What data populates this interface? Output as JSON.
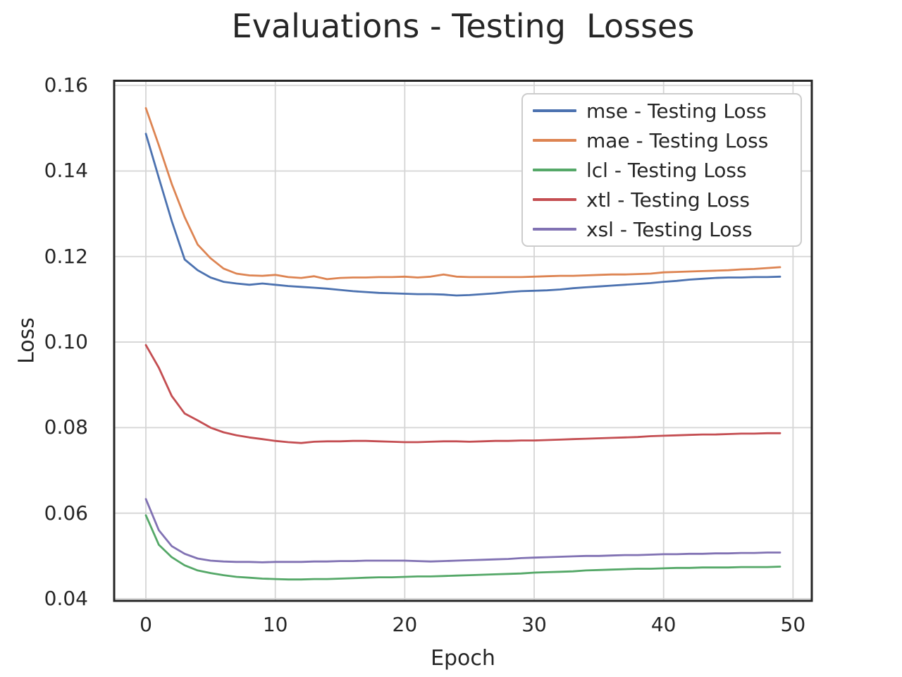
{
  "chart_data": {
    "type": "line",
    "title": "Evaluations - Testing  Losses",
    "xlabel": "Epoch",
    "ylabel": "Loss",
    "xlim": [
      -2.45,
      51.45
    ],
    "ylim": [
      0.0395,
      0.1611
    ],
    "xticks": [
      0,
      10,
      20,
      30,
      40,
      50
    ],
    "yticks": [
      0.04,
      0.06,
      0.08,
      0.1,
      0.12,
      0.14,
      0.16
    ],
    "grid": true,
    "legend_position": "upper right",
    "x": [
      0,
      1,
      2,
      3,
      4,
      5,
      6,
      7,
      8,
      9,
      10,
      11,
      12,
      13,
      14,
      15,
      16,
      17,
      18,
      19,
      20,
      21,
      22,
      23,
      24,
      25,
      26,
      27,
      28,
      29,
      30,
      31,
      32,
      33,
      34,
      35,
      36,
      37,
      38,
      39,
      40,
      41,
      42,
      43,
      44,
      45,
      46,
      47,
      48,
      49
    ],
    "series": [
      {
        "name": "mse",
        "label": "mse - Testing Loss",
        "color": "#4C72B0",
        "values": [
          0.1487,
          0.1384,
          0.1283,
          0.1193,
          0.1168,
          0.1151,
          0.1141,
          0.1137,
          0.1134,
          0.1137,
          0.1134,
          0.1131,
          0.1129,
          0.1127,
          0.1125,
          0.1122,
          0.1119,
          0.1117,
          0.1115,
          0.1114,
          0.1113,
          0.1112,
          0.1112,
          0.1111,
          0.1109,
          0.111,
          0.1112,
          0.1114,
          0.1117,
          0.1119,
          0.112,
          0.1121,
          0.1123,
          0.1126,
          0.1128,
          0.113,
          0.1132,
          0.1134,
          0.1136,
          0.1138,
          0.1141,
          0.1143,
          0.1146,
          0.1148,
          0.115,
          0.1151,
          0.1151,
          0.1152,
          0.1152,
          0.1153
        ]
      },
      {
        "name": "mae",
        "label": "mae - Testing Loss",
        "color": "#DD8452",
        "values": [
          0.1547,
          0.146,
          0.137,
          0.1292,
          0.1228,
          0.1196,
          0.1172,
          0.116,
          0.1156,
          0.1155,
          0.1157,
          0.1152,
          0.115,
          0.1154,
          0.1147,
          0.115,
          0.1151,
          0.1151,
          0.1152,
          0.1152,
          0.1153,
          0.1151,
          0.1153,
          0.1158,
          0.1153,
          0.1152,
          0.1152,
          0.1152,
          0.1152,
          0.1152,
          0.1153,
          0.1154,
          0.1155,
          0.1155,
          0.1156,
          0.1157,
          0.1158,
          0.1158,
          0.1159,
          0.116,
          0.1163,
          0.1164,
          0.1165,
          0.1166,
          0.1167,
          0.1168,
          0.117,
          0.1171,
          0.1173,
          0.1175
        ]
      },
      {
        "name": "lcl",
        "label": "lcl - Testing Loss",
        "color": "#55A868",
        "values": [
          0.0595,
          0.0526,
          0.0497,
          0.0478,
          0.0466,
          0.046,
          0.0455,
          0.0451,
          0.0449,
          0.0447,
          0.0446,
          0.0445,
          0.0445,
          0.0446,
          0.0446,
          0.0447,
          0.0448,
          0.0449,
          0.045,
          0.045,
          0.0451,
          0.0452,
          0.0452,
          0.0453,
          0.0454,
          0.0455,
          0.0456,
          0.0457,
          0.0458,
          0.0459,
          0.0461,
          0.0462,
          0.0463,
          0.0464,
          0.0466,
          0.0467,
          0.0468,
          0.0469,
          0.047,
          0.047,
          0.0471,
          0.0472,
          0.0472,
          0.0473,
          0.0473,
          0.0473,
          0.0474,
          0.0474,
          0.0474,
          0.0475
        ]
      },
      {
        "name": "xtl",
        "label": "xtl - Testing Loss",
        "color": "#C44E52",
        "values": [
          0.0993,
          0.094,
          0.0874,
          0.0833,
          0.0817,
          0.08,
          0.0789,
          0.0782,
          0.0777,
          0.0773,
          0.0769,
          0.0766,
          0.0764,
          0.0767,
          0.0768,
          0.0768,
          0.0769,
          0.0769,
          0.0768,
          0.0767,
          0.0766,
          0.0766,
          0.0767,
          0.0768,
          0.0768,
          0.0767,
          0.0768,
          0.0769,
          0.0769,
          0.077,
          0.077,
          0.0771,
          0.0772,
          0.0773,
          0.0774,
          0.0775,
          0.0776,
          0.0777,
          0.0778,
          0.078,
          0.0781,
          0.0782,
          0.0783,
          0.0784,
          0.0784,
          0.0785,
          0.0786,
          0.0786,
          0.0787,
          0.0787
        ]
      },
      {
        "name": "xsl",
        "label": "xsl - Testing Loss",
        "color": "#8172B3",
        "values": [
          0.0633,
          0.056,
          0.0523,
          0.0505,
          0.0494,
          0.0489,
          0.0487,
          0.0486,
          0.0486,
          0.0485,
          0.0486,
          0.0486,
          0.0486,
          0.0487,
          0.0487,
          0.0488,
          0.0488,
          0.0489,
          0.0489,
          0.0489,
          0.0489,
          0.0488,
          0.0487,
          0.0488,
          0.0489,
          0.049,
          0.0491,
          0.0492,
          0.0493,
          0.0495,
          0.0496,
          0.0497,
          0.0498,
          0.0499,
          0.05,
          0.05,
          0.0501,
          0.0502,
          0.0502,
          0.0503,
          0.0504,
          0.0504,
          0.0505,
          0.0505,
          0.0506,
          0.0506,
          0.0507,
          0.0507,
          0.0508,
          0.0508
        ]
      }
    ],
    "colors": {
      "text": "#262626",
      "grid": "#d5d5d5",
      "axes_edge": "#262626",
      "legend_border": "#cccccc",
      "background": "#ffffff"
    }
  }
}
